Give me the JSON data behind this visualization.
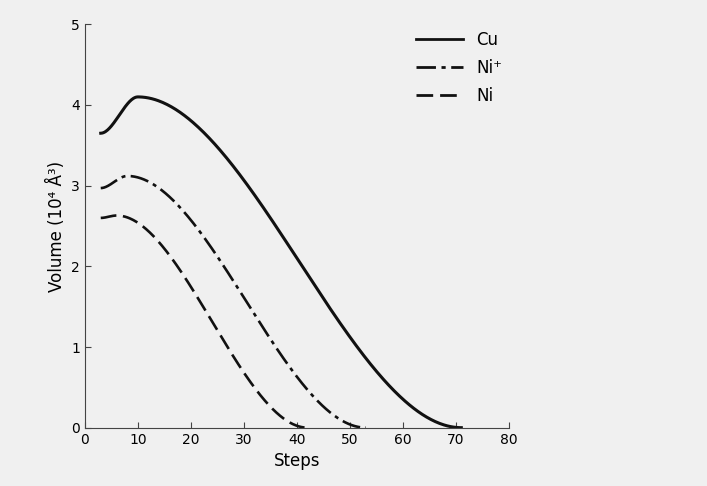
{
  "title": "",
  "xlabel": "Steps",
  "ylabel": "Volume (10⁴ Å³)",
  "xlim": [
    0,
    80
  ],
  "ylim": [
    0,
    5
  ],
  "xticks": [
    0,
    10,
    20,
    30,
    40,
    50,
    60,
    70,
    80
  ],
  "yticks": [
    0,
    1,
    2,
    3,
    4,
    5
  ],
  "background_color": "#f0f0f0",
  "series": [
    {
      "label": "Cu",
      "linestyle": "solid",
      "color": "#111111",
      "linewidth": 2.2,
      "peak_x": 10,
      "peak_y": 4.1,
      "start_x": 3,
      "start_y": 3.65,
      "end_x": 71
    },
    {
      "label": "Ni⁺",
      "linestyle": "dashdot",
      "color": "#111111",
      "linewidth": 1.9,
      "peak_x": 8,
      "peak_y": 3.12,
      "start_x": 3,
      "start_y": 2.97,
      "end_x": 53
    },
    {
      "label": "Ni",
      "linestyle": "dashed",
      "color": "#111111",
      "linewidth": 1.9,
      "peak_x": 6,
      "peak_y": 2.63,
      "start_x": 3,
      "start_y": 2.6,
      "end_x": 42
    }
  ],
  "legend_fontsize": 12,
  "tick_fontsize": 10,
  "axis_label_fontsize": 12
}
